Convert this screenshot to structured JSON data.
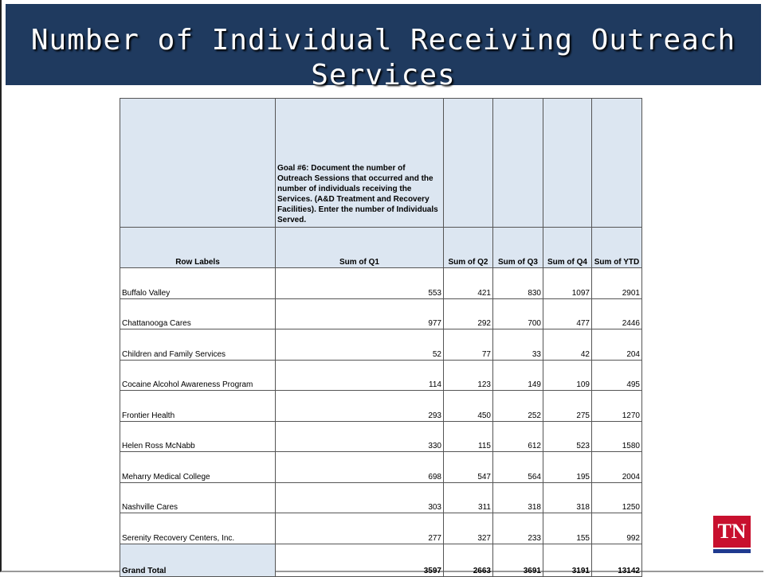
{
  "title": "Number of Individual Receiving Outreach Services",
  "table": {
    "goal_header": "Goal #6:  Document the number of Outreach Sessions that occurred and the number of individuals receiving the Services.  (A&D Treatment and Recovery Facilities).  Enter the number of Individuals Served.",
    "columns": [
      "Row Labels",
      "Sum of Q1",
      "Sum of Q2",
      "Sum of Q3",
      "Sum of Q4",
      "Sum of YTD"
    ],
    "rows": [
      [
        "Buffalo Valley",
        553,
        421,
        830,
        1097,
        2901
      ],
      [
        "Chattanooga Cares",
        977,
        292,
        700,
        477,
        2446
      ],
      [
        "Children and Family Services",
        52,
        77,
        33,
        42,
        204
      ],
      [
        "Cocaine Alcohol Awareness Program",
        114,
        123,
        149,
        109,
        495
      ],
      [
        "Frontier Health",
        293,
        450,
        252,
        275,
        1270
      ],
      [
        "Helen Ross McNabb",
        330,
        115,
        612,
        523,
        1580
      ],
      [
        "Meharry Medical College",
        698,
        547,
        564,
        195,
        2004
      ],
      [
        "Nashville Cares",
        303,
        311,
        318,
        318,
        1250
      ],
      [
        "Serenity Recovery Centers, Inc.",
        277,
        327,
        233,
        155,
        992
      ]
    ],
    "grand_total": [
      "Grand Total",
      3597,
      2663,
      3691,
      3191,
      13142
    ]
  },
  "logo": "TN"
}
